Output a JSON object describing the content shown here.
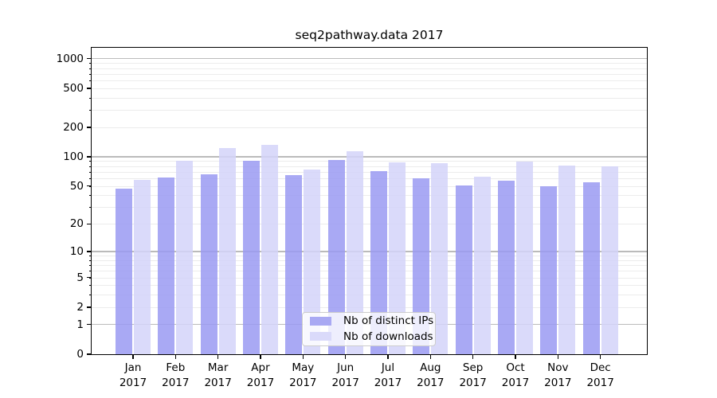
{
  "chart_data": {
    "type": "bar",
    "title": "seq2pathway.data 2017",
    "categories": [
      "Jan",
      "Feb",
      "Mar",
      "Apr",
      "May",
      "Jun",
      "Jul",
      "Aug",
      "Sep",
      "Oct",
      "Nov",
      "Dec"
    ],
    "x_year_label": "2017",
    "series": [
      {
        "name": "Nb of distinct IPs",
        "color": "#a9a9f3",
        "fill": "rgba(154,154,242,0.85)",
        "values": [
          47,
          61,
          66,
          91,
          65,
          93,
          71,
          60,
          51,
          57,
          50,
          55
        ]
      },
      {
        "name": "Nb of downloads",
        "color": "#dadafa",
        "fill": "rgba(211,211,249,0.85)",
        "values": [
          58,
          90,
          123,
          131,
          74,
          113,
          88,
          86,
          62,
          89,
          81,
          80
        ]
      }
    ],
    "yscale": "log1p",
    "ylabel": "",
    "xlabel": "",
    "y_ticks": [
      0,
      1,
      2,
      5,
      10,
      20,
      50,
      100,
      200,
      500,
      1000
    ],
    "ylim": [
      0,
      1290
    ],
    "grid": {
      "major": [
        1,
        10,
        100,
        1000
      ],
      "minor_bases": [
        2,
        3,
        4,
        5,
        6,
        7,
        8,
        9
      ],
      "minor_decades": [
        1,
        10,
        100
      ]
    },
    "legend_position": "bottom-center",
    "colors": {
      "frame": "#000000",
      "major_grid": "#bbbbbb",
      "minor_grid": "#ececec",
      "text": "#000000",
      "legend_border": "#cccccc"
    }
  }
}
